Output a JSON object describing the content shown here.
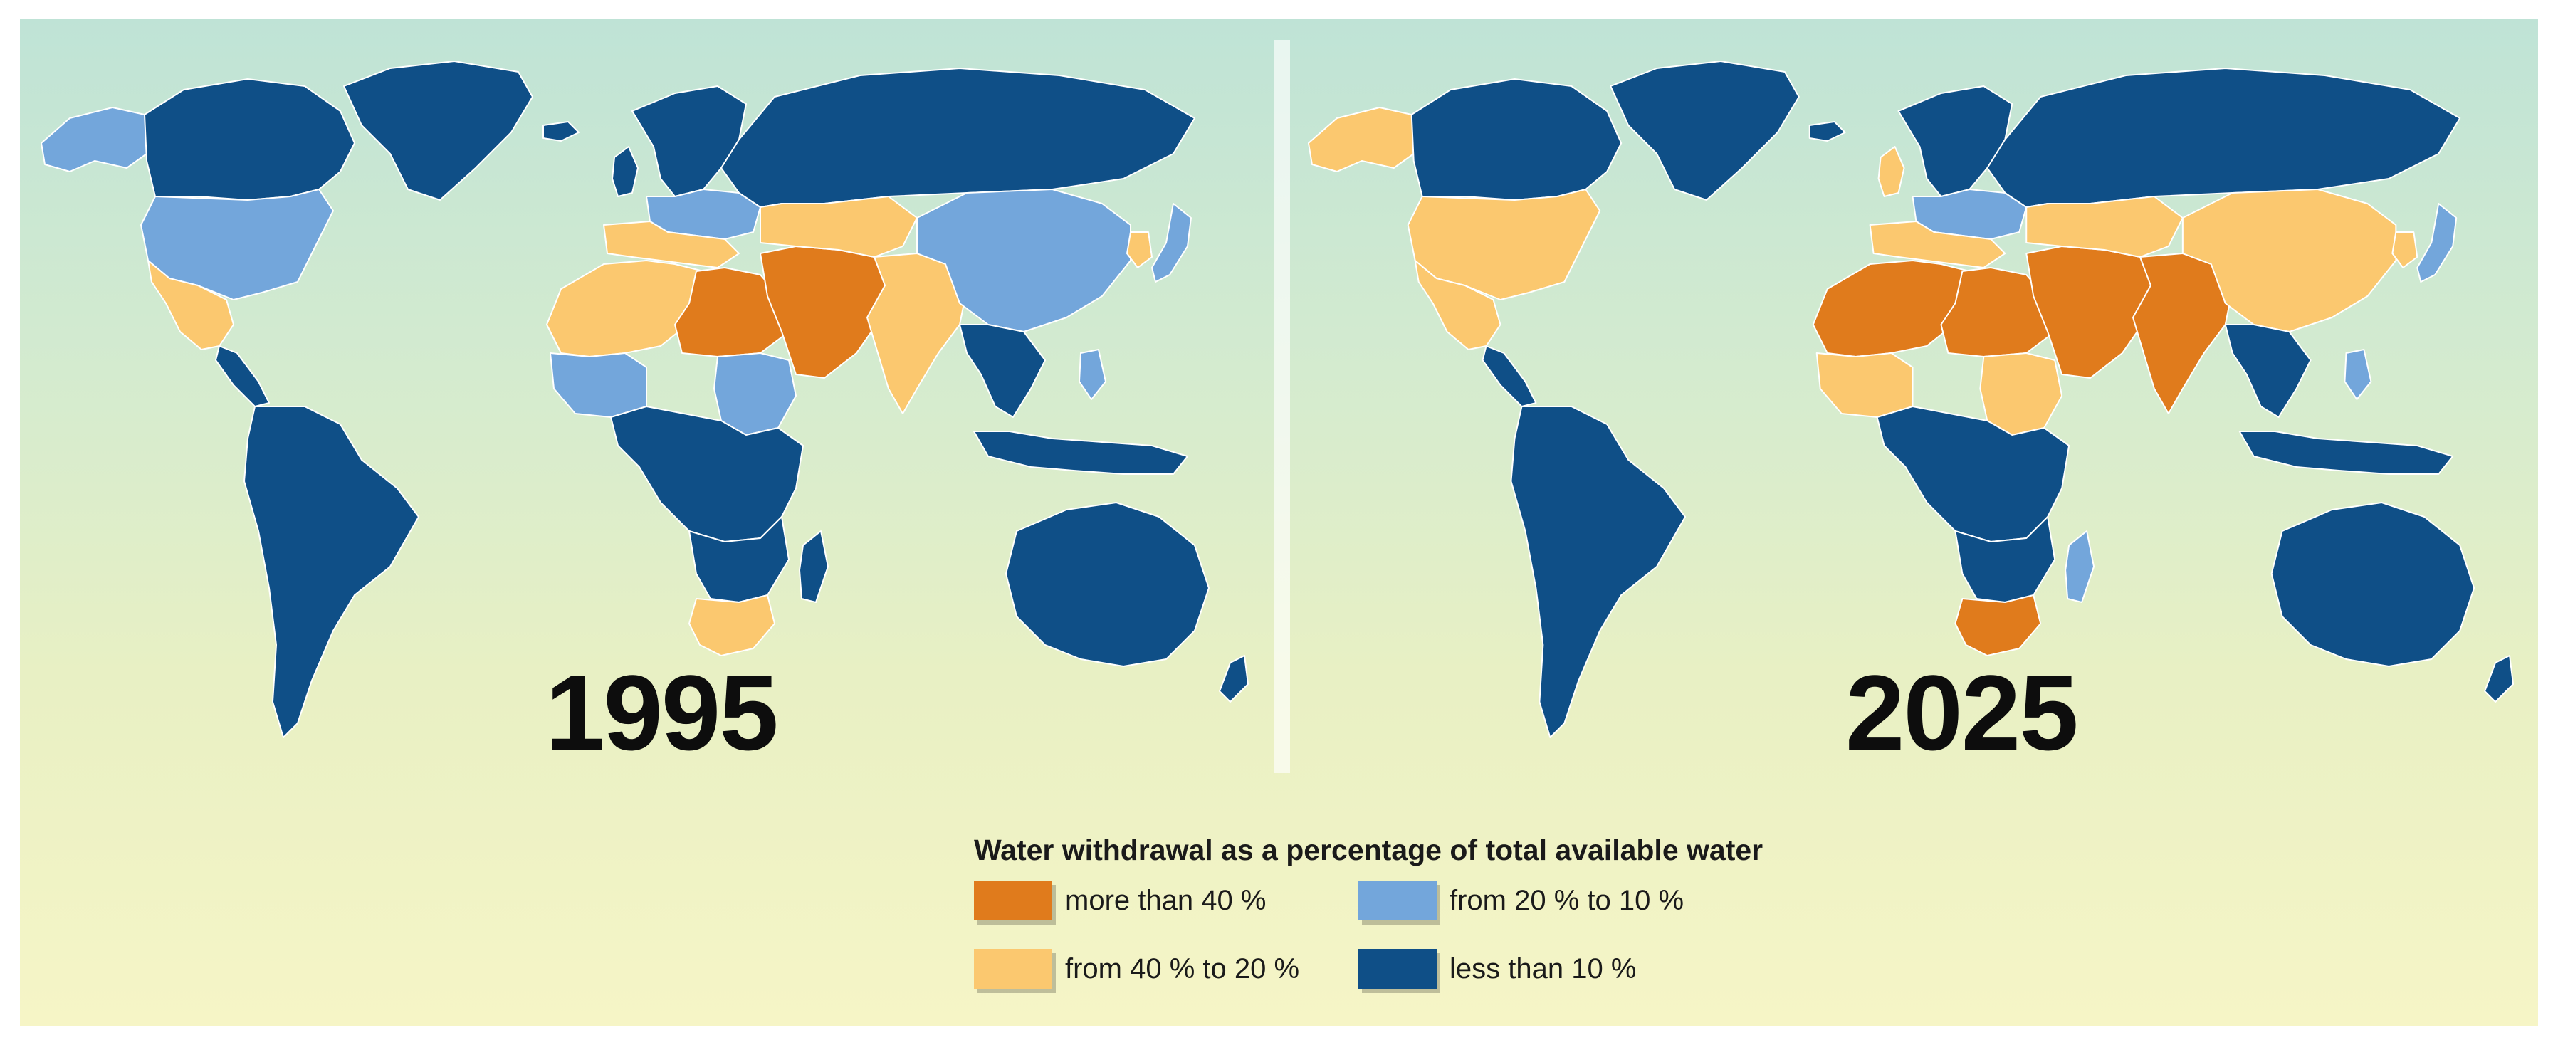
{
  "legend": {
    "title": "Water withdrawal as a percentage of total available water",
    "items": [
      {
        "label": "more than 40 %",
        "color": "#e07b1c"
      },
      {
        "label": "from 40 % to 20 %",
        "color": "#fbc86f"
      },
      {
        "label": "from 20 % to 10 %",
        "color": "#73a6db"
      },
      {
        "label": "less than 10 %",
        "color": "#0f4f87"
      }
    ]
  },
  "maps": [
    {
      "year": "1995",
      "regions": {
        "north_america_north": "less than 10 %",
        "greenland": "less than 10 %",
        "alaska": "from 20 % to 10 %",
        "usa": "from 20 % to 10 %",
        "mexico": "from 40 % to 20 %",
        "central_america": "less than 10 %",
        "south_america": "less than 10 %",
        "europe_north": "less than 10 %",
        "europe_south": "from 40 % to 20 %",
        "europe_central": "from 20 % to 10 %",
        "north_africa": "from 40 % to 20 %",
        "sahara_east": "more than 40 %",
        "sahel_west": "from 20 % to 10 %",
        "africa_central": "less than 10 %",
        "sudan": "from 20 % to 10 %",
        "africa_south": "less than 10 %",
        "south_africa": "from 40 % to 20 %",
        "madagascar": "less than 10 %",
        "arabia_iran": "more than 40 %",
        "central_asia": "from 40 % to 20 %",
        "india": "from 40 % to 20 %",
        "russia": "less than 10 %",
        "china": "from 20 % to 10 %",
        "korea": "from 40 % to 20 %",
        "japan": "from 20 % to 10 %",
        "se_asia": "less than 10 %",
        "indonesia": "less than 10 %",
        "philippines": "from 20 % to 10 %",
        "australia": "less than 10 %",
        "new_zealand": "less than 10 %",
        "uk": "less than 10 %",
        "iceland": "less than 10 %"
      }
    },
    {
      "year": "2025",
      "regions": {
        "north_america_north": "less than 10 %",
        "greenland": "less than 10 %",
        "alaska": "from 40 % to 20 %",
        "usa": "from 40 % to 20 %",
        "mexico": "from 40 % to 20 %",
        "central_america": "less than 10 %",
        "south_america": "less than 10 %",
        "europe_north": "less than 10 %",
        "europe_south": "from 40 % to 20 %",
        "europe_central": "from 20 % to 10 %",
        "north_africa": "more than 40 %",
        "sahara_east": "more than 40 %",
        "sahel_west": "from 40 % to 20 %",
        "africa_central": "less than 10 %",
        "sudan": "from 40 % to 20 %",
        "africa_south": "less than 10 %",
        "south_africa": "more than 40 %",
        "madagascar": "from 20 % to 10 %",
        "arabia_iran": "more than 40 %",
        "central_asia": "from 40 % to 20 %",
        "india": "more than 40 %",
        "russia": "less than 10 %",
        "china": "from 40 % to 20 %",
        "korea": "from 40 % to 20 %",
        "japan": "from 20 % to 10 %",
        "se_asia": "less than 10 %",
        "indonesia": "less than 10 %",
        "philippines": "from 20 % to 10 %",
        "australia": "less than 10 %",
        "new_zealand": "less than 10 %",
        "uk": "from 40 % to 20 %",
        "iceland": "less than 10 %"
      }
    }
  ]
}
